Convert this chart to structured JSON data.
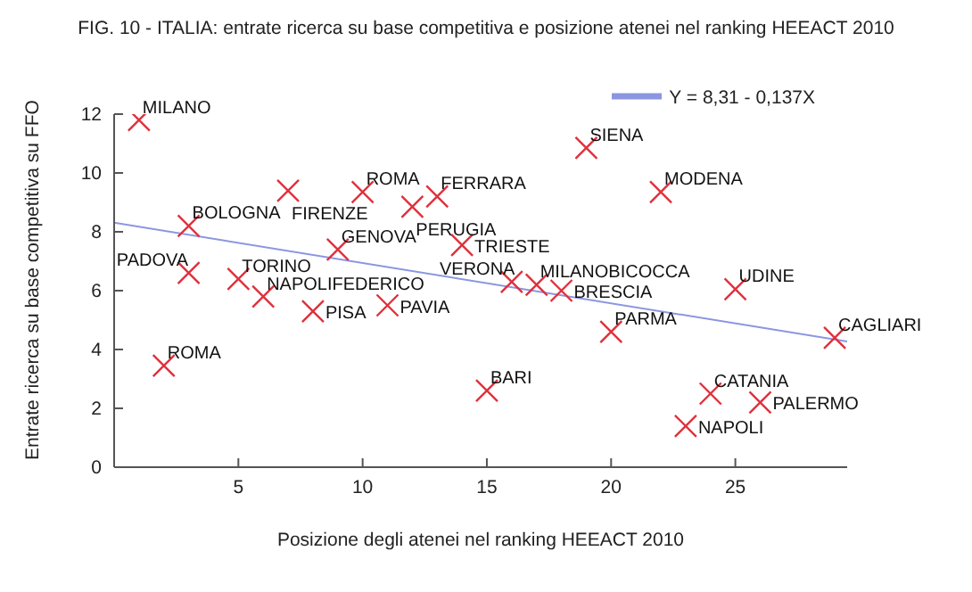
{
  "chart_data": {
    "type": "scatter",
    "title": "FIG. 10 - ITALIA: entrate ricerca su base competitiva e posizione atenei nel ranking HEEACT 2010",
    "xlabel": "Posizione degli atenei nel ranking HEEACT 2010",
    "ylabel": "Entrate ricerca su base competitiva su FFO",
    "x": [
      1,
      2,
      3,
      3,
      5,
      6,
      7,
      8,
      9,
      10,
      11,
      12,
      13,
      14,
      15,
      16,
      17,
      18,
      19,
      20,
      22,
      23,
      24,
      25,
      26,
      29
    ],
    "series": [
      {
        "color": "#e0303c",
        "values": [
          11.8,
          3.45,
          8.2,
          6.6,
          6.4,
          5.8,
          9.4,
          5.3,
          7.4,
          9.35,
          5.5,
          8.85,
          9.2,
          7.55,
          2.6,
          6.3,
          6.2,
          6.0,
          10.85,
          4.6,
          9.35,
          1.4,
          2.5,
          6.05,
          2.2,
          4.4
        ]
      },
      {
        "type": "line",
        "name": "Y = 8,31 - 0,137X",
        "color": "#8c96e0",
        "marker": "none",
        "x": [
          0,
          29.5
        ],
        "values": [
          8.31,
          4.27
        ]
      }
    ],
    "annotations": [
      {
        "text": "MILANO",
        "x": 1,
        "y": 11.8
      },
      {
        "text": "ROMA",
        "x": 2,
        "y": 3.45
      },
      {
        "text": "BOLOGNA",
        "x": 3,
        "y": 8.2
      },
      {
        "text": "PADOVA",
        "x": 3,
        "y": 6.6
      },
      {
        "text": "TORINO",
        "x": 5,
        "y": 6.4
      },
      {
        "text": "NAPOLIFEDERICO",
        "x": 6,
        "y": 5.8
      },
      {
        "text": "FIRENZE",
        "x": 7,
        "y": 9.4
      },
      {
        "text": "PISA",
        "x": 8,
        "y": 5.3
      },
      {
        "text": "GENOVA",
        "x": 9,
        "y": 7.4
      },
      {
        "text": "ROMA",
        "x": 10,
        "y": 9.35
      },
      {
        "text": "PAVIA",
        "x": 11,
        "y": 5.5
      },
      {
        "text": "PERUGIA",
        "x": 12,
        "y": 8.85
      },
      {
        "text": "FERRARA",
        "x": 13,
        "y": 9.2
      },
      {
        "text": "TRIESTE",
        "x": 14,
        "y": 7.55
      },
      {
        "text": "BARI",
        "x": 15,
        "y": 2.6
      },
      {
        "text": "VERONA",
        "x": 16,
        "y": 6.3
      },
      {
        "text": "MILANOBICOCCA",
        "x": 17,
        "y": 6.2
      },
      {
        "text": "BRESCIA",
        "x": 18,
        "y": 6.0
      },
      {
        "text": "SIENA",
        "x": 19,
        "y": 10.85
      },
      {
        "text": "PARMA",
        "x": 20,
        "y": 4.6
      },
      {
        "text": "MODENA",
        "x": 22,
        "y": 9.35
      },
      {
        "text": "NAPOLI",
        "x": 23,
        "y": 1.4
      },
      {
        "text": "CATANIA",
        "x": 24,
        "y": 2.5
      },
      {
        "text": "UDINE",
        "x": 25,
        "y": 6.05
      },
      {
        "text": "PALERMO",
        "x": 26,
        "y": 2.2
      },
      {
        "text": "CAGLIARI",
        "x": 29,
        "y": 4.4
      }
    ],
    "xlim": [
      0,
      29.5
    ],
    "xticks": [
      5,
      10,
      15,
      20,
      25
    ],
    "ylim": [
      0,
      12
    ],
    "yticks": [
      0,
      2,
      4,
      6,
      8,
      10,
      12
    ],
    "marker": "cross",
    "grid": false,
    "legend": "top right"
  }
}
